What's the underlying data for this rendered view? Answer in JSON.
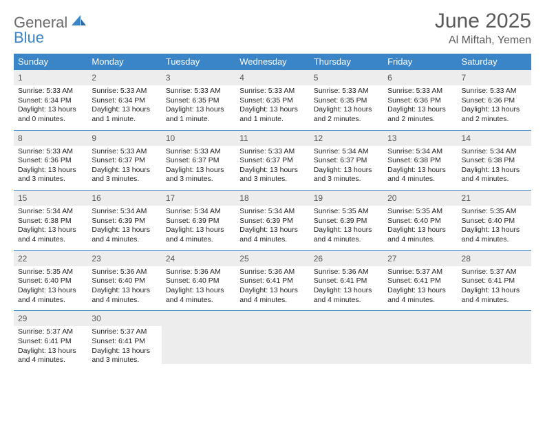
{
  "logo": {
    "text1": "General",
    "text2": "Blue"
  },
  "title": "June 2025",
  "location": "Al Miftah, Yemen",
  "colors": {
    "header_bg": "#3a84c8",
    "header_text": "#ffffff",
    "daynum_bg": "#ededed",
    "border": "#3a84c8",
    "logo_gray": "#6b6b6b",
    "logo_blue": "#3a84c8"
  },
  "weekdays": [
    "Sunday",
    "Monday",
    "Tuesday",
    "Wednesday",
    "Thursday",
    "Friday",
    "Saturday"
  ],
  "weeks": [
    [
      {
        "n": "1",
        "sunrise": "5:33 AM",
        "sunset": "6:34 PM",
        "daylight": "13 hours and 0 minutes."
      },
      {
        "n": "2",
        "sunrise": "5:33 AM",
        "sunset": "6:34 PM",
        "daylight": "13 hours and 1 minute."
      },
      {
        "n": "3",
        "sunrise": "5:33 AM",
        "sunset": "6:35 PM",
        "daylight": "13 hours and 1 minute."
      },
      {
        "n": "4",
        "sunrise": "5:33 AM",
        "sunset": "6:35 PM",
        "daylight": "13 hours and 1 minute."
      },
      {
        "n": "5",
        "sunrise": "5:33 AM",
        "sunset": "6:35 PM",
        "daylight": "13 hours and 2 minutes."
      },
      {
        "n": "6",
        "sunrise": "5:33 AM",
        "sunset": "6:36 PM",
        "daylight": "13 hours and 2 minutes."
      },
      {
        "n": "7",
        "sunrise": "5:33 AM",
        "sunset": "6:36 PM",
        "daylight": "13 hours and 2 minutes."
      }
    ],
    [
      {
        "n": "8",
        "sunrise": "5:33 AM",
        "sunset": "6:36 PM",
        "daylight": "13 hours and 3 minutes."
      },
      {
        "n": "9",
        "sunrise": "5:33 AM",
        "sunset": "6:37 PM",
        "daylight": "13 hours and 3 minutes."
      },
      {
        "n": "10",
        "sunrise": "5:33 AM",
        "sunset": "6:37 PM",
        "daylight": "13 hours and 3 minutes."
      },
      {
        "n": "11",
        "sunrise": "5:33 AM",
        "sunset": "6:37 PM",
        "daylight": "13 hours and 3 minutes."
      },
      {
        "n": "12",
        "sunrise": "5:34 AM",
        "sunset": "6:37 PM",
        "daylight": "13 hours and 3 minutes."
      },
      {
        "n": "13",
        "sunrise": "5:34 AM",
        "sunset": "6:38 PM",
        "daylight": "13 hours and 4 minutes."
      },
      {
        "n": "14",
        "sunrise": "5:34 AM",
        "sunset": "6:38 PM",
        "daylight": "13 hours and 4 minutes."
      }
    ],
    [
      {
        "n": "15",
        "sunrise": "5:34 AM",
        "sunset": "6:38 PM",
        "daylight": "13 hours and 4 minutes."
      },
      {
        "n": "16",
        "sunrise": "5:34 AM",
        "sunset": "6:39 PM",
        "daylight": "13 hours and 4 minutes."
      },
      {
        "n": "17",
        "sunrise": "5:34 AM",
        "sunset": "6:39 PM",
        "daylight": "13 hours and 4 minutes."
      },
      {
        "n": "18",
        "sunrise": "5:34 AM",
        "sunset": "6:39 PM",
        "daylight": "13 hours and 4 minutes."
      },
      {
        "n": "19",
        "sunrise": "5:35 AM",
        "sunset": "6:39 PM",
        "daylight": "13 hours and 4 minutes."
      },
      {
        "n": "20",
        "sunrise": "5:35 AM",
        "sunset": "6:40 PM",
        "daylight": "13 hours and 4 minutes."
      },
      {
        "n": "21",
        "sunrise": "5:35 AM",
        "sunset": "6:40 PM",
        "daylight": "13 hours and 4 minutes."
      }
    ],
    [
      {
        "n": "22",
        "sunrise": "5:35 AM",
        "sunset": "6:40 PM",
        "daylight": "13 hours and 4 minutes."
      },
      {
        "n": "23",
        "sunrise": "5:36 AM",
        "sunset": "6:40 PM",
        "daylight": "13 hours and 4 minutes."
      },
      {
        "n": "24",
        "sunrise": "5:36 AM",
        "sunset": "6:40 PM",
        "daylight": "13 hours and 4 minutes."
      },
      {
        "n": "25",
        "sunrise": "5:36 AM",
        "sunset": "6:41 PM",
        "daylight": "13 hours and 4 minutes."
      },
      {
        "n": "26",
        "sunrise": "5:36 AM",
        "sunset": "6:41 PM",
        "daylight": "13 hours and 4 minutes."
      },
      {
        "n": "27",
        "sunrise": "5:37 AM",
        "sunset": "6:41 PM",
        "daylight": "13 hours and 4 minutes."
      },
      {
        "n": "28",
        "sunrise": "5:37 AM",
        "sunset": "6:41 PM",
        "daylight": "13 hours and 4 minutes."
      }
    ],
    [
      {
        "n": "29",
        "sunrise": "5:37 AM",
        "sunset": "6:41 PM",
        "daylight": "13 hours and 4 minutes."
      },
      {
        "n": "30",
        "sunrise": "5:37 AM",
        "sunset": "6:41 PM",
        "daylight": "13 hours and 3 minutes."
      },
      null,
      null,
      null,
      null,
      null
    ]
  ],
  "labels": {
    "sunrise": "Sunrise:",
    "sunset": "Sunset:",
    "daylight": "Daylight:"
  }
}
